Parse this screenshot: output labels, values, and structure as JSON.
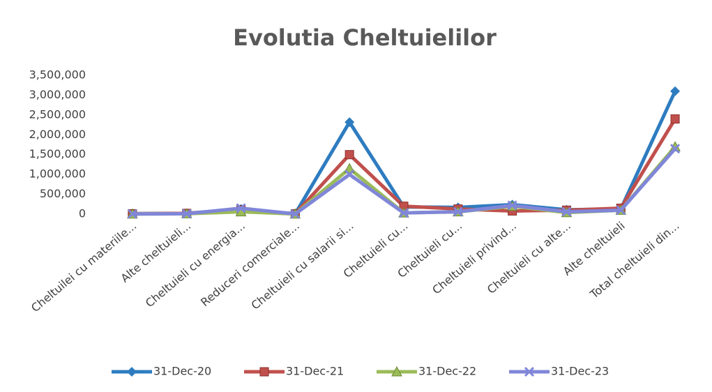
{
  "chart_data": {
    "type": "line",
    "title": "Evolutia Cheltuielilor",
    "categories": [
      "Cheltuilei cu materiile...",
      "Alte cheltuieli...",
      "Cheltuieli cu energia...",
      "Reduceri comerciale...",
      "Cheltuieli cu salarii si...",
      "Cheltuieli cu...",
      "Cheltuieli cu...",
      "Cheltuieli privind...",
      "Cheltuieli cu alte...",
      "Alte cheltuieli",
      "Total cheltuieli din..."
    ],
    "series": [
      {
        "name": "31-Dec-20",
        "color": "#2e7cc0",
        "marker": "diamond",
        "values": [
          10000,
          20000,
          130000,
          10000,
          2320000,
          180000,
          170000,
          240000,
          110000,
          130000,
          3100000
        ]
      },
      {
        "name": "31-Dec-21",
        "color": "#c0504d",
        "marker": "square",
        "values": [
          10000,
          20000,
          110000,
          10000,
          1500000,
          200000,
          130000,
          80000,
          100000,
          150000,
          2400000
        ]
      },
      {
        "name": "31-Dec-22",
        "color": "#9bbb59",
        "marker": "triangle",
        "values": [
          5000,
          10000,
          60000,
          5000,
          1150000,
          30000,
          60000,
          200000,
          40000,
          100000,
          1700000
        ]
      },
      {
        "name": "31-Dec-23",
        "color": "#8086d8",
        "marker": "cross",
        "values": [
          5000,
          10000,
          150000,
          5000,
          1000000,
          30000,
          60000,
          220000,
          60000,
          100000,
          1650000
        ]
      }
    ],
    "ylim": [
      0,
      3500000
    ],
    "yticks": [
      0,
      {
        "value": 500000,
        "label": "500,000"
      },
      {
        "value": 1000000,
        "label": "1,000,000"
      },
      {
        "value": 1500000,
        "label": "1,500,000"
      },
      {
        "value": 2000000,
        "label": "2,000,000"
      },
      {
        "value": 2500000,
        "label": "2,500,000"
      },
      {
        "value": 3000000,
        "label": "3,000,000"
      },
      {
        "value": 3500000,
        "label": "3,500,000"
      }
    ],
    "grid": false,
    "legend": "bottom"
  }
}
